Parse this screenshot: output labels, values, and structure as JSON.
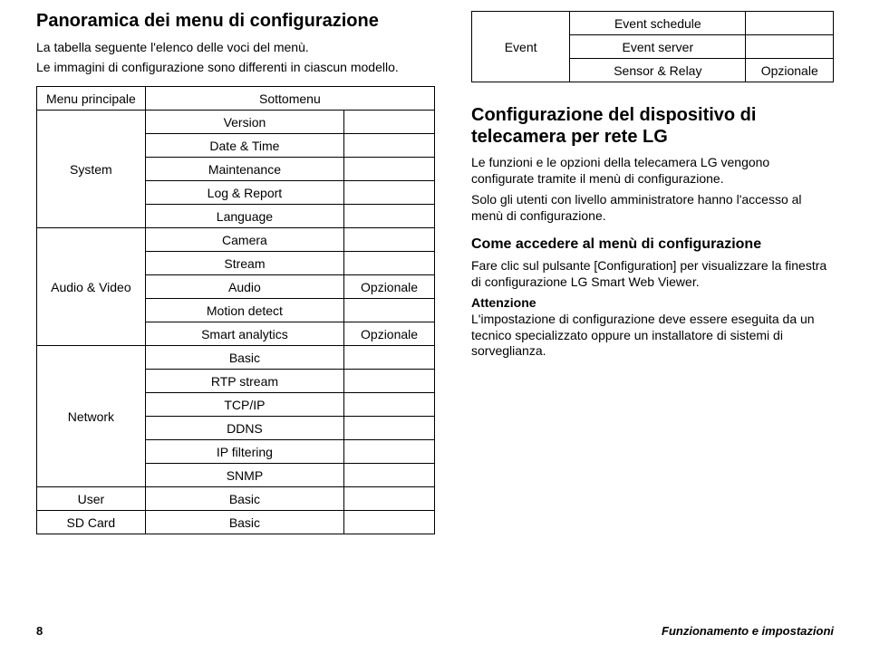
{
  "left": {
    "title": "Panoramica dei menu di configurazione",
    "intro1": "La tabella seguente l'elenco delle voci del menù.",
    "intro2": "Le immagini di configurazione sono differenti in ciascun modello.",
    "table_header_main": "Menu principale",
    "table_header_sub": "Sottomenu",
    "rows": [
      {
        "main": "System",
        "subs": [
          "Version",
          "Date & Time",
          "Maintenance",
          "Log & Report",
          "Language"
        ],
        "opts": [
          "",
          "",
          "",
          "",
          ""
        ]
      },
      {
        "main": "Audio & Video",
        "subs": [
          "Camera",
          "Stream",
          "Audio",
          "Motion detect",
          "Smart analytics"
        ],
        "opts": [
          "",
          "",
          "Opzionale",
          "",
          "Opzionale"
        ]
      },
      {
        "main": "Network",
        "subs": [
          "Basic",
          "RTP stream",
          "TCP/IP",
          "DDNS",
          "IP filtering",
          "SNMP"
        ],
        "opts": [
          "",
          "",
          "",
          "",
          "",
          ""
        ]
      },
      {
        "main": "User",
        "subs": [
          "Basic"
        ],
        "opts": [
          ""
        ]
      },
      {
        "main": "SD Card",
        "subs": [
          "Basic"
        ],
        "opts": [
          ""
        ]
      }
    ]
  },
  "right": {
    "event_table": {
      "main": "Event",
      "subs": [
        "Event schedule",
        "Event server",
        "Sensor & Relay"
      ],
      "opts": [
        "",
        "",
        "Opzionale"
      ]
    },
    "h2": "Configurazione del dispositivo di telecamera per rete LG",
    "p1": "Le funzioni e le opzioni della telecamera LG vengono configurate tramite il menù di configurazione.",
    "p2": "Solo gli utenti con livello amministratore hanno l'accesso al menù di configurazione.",
    "h3": "Come accedere al menù di configurazione",
    "p3": "Fare clic sul pulsante [Configuration] per visualizzare la finestra di configurazione LG Smart Web Viewer.",
    "att_label": "Attenzione",
    "p4": "L'impostazione di configurazione deve essere eseguita da un tecnico specializzato oppure un installatore di sistemi di sorveglianza."
  },
  "footer": {
    "page": "8",
    "text": "Funzionamento e impostazioni"
  }
}
